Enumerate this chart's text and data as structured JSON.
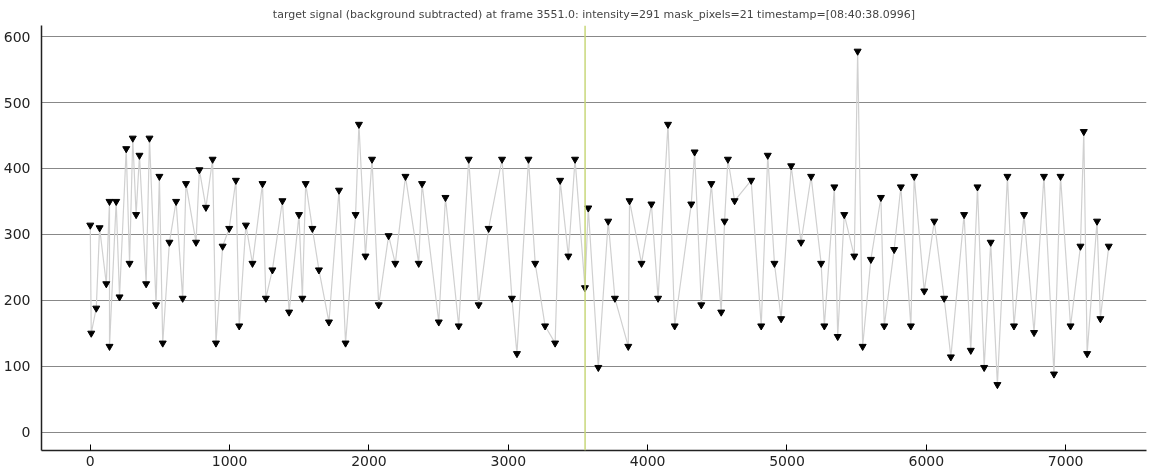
{
  "chart_data": {
    "type": "line",
    "title": "target signal (background subtracted) at frame 3551.0: intensity=291 mask_pixels=21 timestamp=[08:40:38.0996]",
    "x": [
      0,
      7,
      43,
      67,
      115,
      138,
      138,
      186,
      210,
      258,
      282,
      305,
      329,
      353,
      401,
      425,
      472,
      496,
      520,
      568,
      616,
      663,
      687,
      759,
      783,
      830,
      878,
      902,
      950,
      997,
      1045,
      1069,
      1117,
      1164,
      1236,
      1260,
      1307,
      1379,
      1427,
      1498,
      1522,
      1546,
      1594,
      1641,
      1713,
      1785,
      1832,
      1904,
      1928,
      1975,
      2022,
      2070,
      2141,
      2189,
      2262,
      2357,
      2381,
      2501,
      2549,
      2644,
      2716,
      2787,
      2859,
      2955,
      3026,
      3062,
      3145,
      3193,
      3264,
      3336,
      3372,
      3431,
      3479,
      3550,
      3574,
      3646,
      3717,
      3765,
      3861,
      3870,
      3956,
      4027,
      4075,
      4146,
      4194,
      4313,
      4337,
      4385,
      4457,
      4528,
      4552,
      4576,
      4624,
      4743,
      4815,
      4862,
      4910,
      4958,
      5030,
      5101,
      5173,
      5245,
      5268,
      5340,
      5364,
      5411,
      5483,
      5507,
      5543,
      5602,
      5674,
      5698,
      5769,
      5817,
      5889,
      5913,
      5985,
      6057,
      6128,
      6176,
      6271,
      6319,
      6367,
      6415,
      6462,
      6510,
      6582,
      6629,
      6701,
      6773,
      6844,
      6916,
      6963,
      7035,
      7106,
      7130,
      7154,
      7225,
      7249,
      7309
    ],
    "series": [
      {
        "color": "#000000",
        "values": [
          314,
          150,
          188,
          310,
          225,
          350,
          130,
          350,
          205,
          430,
          256,
          446,
          330,
          420,
          225,
          446,
          193,
          388,
          135,
          288,
          350,
          203,
          377,
          288,
          398,
          341,
          414,
          135,
          282,
          309,
          382,
          161,
          314,
          256,
          377,
          203,
          246,
          351,
          182,
          330,
          203,
          377,
          309,
          246,
          167,
          367,
          135,
          330,
          467,
          267,
          414,
          193,
          298,
          256,
          388,
          256,
          377,
          167,
          356,
          161,
          414,
          193,
          309,
          414,
          203,
          119,
          414,
          256,
          161,
          135,
          382,
          267,
          414,
          219,
          340,
          98,
          320,
          203,
          130,
          351,
          256,
          346,
          203,
          467,
          161,
          346,
          425,
          193,
          377,
          182,
          320,
          414,
          351,
          382,
          161,
          420,
          256,
          172,
          404,
          288,
          388,
          256,
          161,
          372,
          145,
          330,
          267,
          578,
          130,
          262,
          356,
          161,
          277,
          372,
          161,
          388,
          214,
          320,
          203,
          114,
          330,
          124,
          372,
          98,
          288,
          72,
          388,
          161,
          330,
          151,
          388,
          88,
          388,
          161,
          282,
          456,
          119,
          320,
          172,
          282
        ]
      }
    ],
    "xlim": [
      -350,
      7580
    ],
    "ylim": [
      -28,
      617
    ],
    "xticks": [
      0,
      1000,
      2000,
      3000,
      4000,
      5000,
      6000,
      7000
    ],
    "yticks": [
      0,
      100,
      200,
      300,
      400,
      500,
      600
    ],
    "grid": "y",
    "marker": "triangle",
    "line_style": "solid",
    "ref_lines": [
      {
        "axis": "x",
        "value": 3551,
        "color": "#c8d77a"
      }
    ]
  }
}
